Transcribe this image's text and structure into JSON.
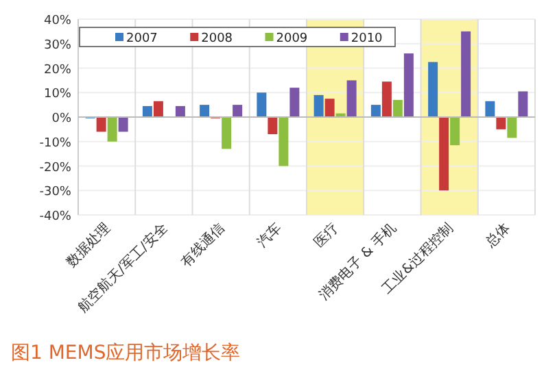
{
  "chart_data": {
    "type": "bar",
    "title": "图1 MEMS应用市场增长率",
    "categories": [
      "数据处理",
      "航空航天/军工/安全",
      "有线通信",
      "汽车",
      "医疗",
      "消费电子 & 手机",
      "工业&过程控制",
      "总体"
    ],
    "series": [
      {
        "name": "2007",
        "color": "#3a7cc4",
        "values": [
          -0.5,
          4.5,
          5,
          10,
          9,
          5,
          22.5,
          6.5
        ]
      },
      {
        "name": "2008",
        "color": "#c83a3a",
        "values": [
          -6,
          6.5,
          -0.5,
          -7,
          7.5,
          14.5,
          -30,
          -5
        ]
      },
      {
        "name": "2009",
        "color": "#8cbf3f",
        "values": [
          -10,
          0,
          -13,
          -20,
          1.5,
          7,
          -11.5,
          -8.5
        ]
      },
      {
        "name": "2010",
        "color": "#7a55a8",
        "values": [
          -6,
          4.5,
          5,
          12,
          15,
          26,
          35,
          10.5
        ]
      }
    ],
    "ylim": [
      -40,
      40
    ],
    "yticks": [
      {
        "value": -40,
        "label": "-40%"
      },
      {
        "value": -30,
        "label": "-30%"
      },
      {
        "value": -20,
        "label": "-20%"
      },
      {
        "value": -10,
        "label": "-10%"
      },
      {
        "value": 0,
        "label": "0%"
      },
      {
        "value": 10,
        "label": "10%"
      },
      {
        "value": 20,
        "label": "20%"
      },
      {
        "value": 30,
        "label": "30%"
      },
      {
        "value": 40,
        "label": "40%"
      }
    ],
    "bands": [
      {
        "axis": "x",
        "from": "医疗",
        "to": "医疗",
        "color": "#fbf4a6"
      },
      {
        "axis": "x",
        "from": "工业&过程控制",
        "to": "工业&过程控制",
        "color": "#fbf4a6"
      }
    ],
    "grid": true,
    "legend": "top"
  }
}
